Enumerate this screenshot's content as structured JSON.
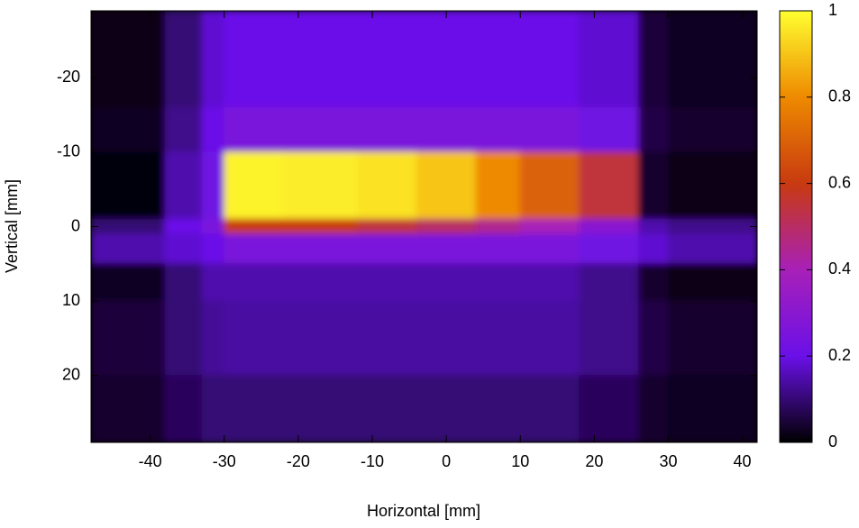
{
  "chart_data": {
    "type": "heatmap",
    "xlabel": "Horizontal [mm]",
    "ylabel": "Vertical [mm]",
    "xbins": [
      -48,
      -38,
      -33,
      -30,
      -22,
      -12,
      -4,
      4,
      10,
      18,
      26,
      30,
      42
    ],
    "ybins": [
      -29,
      -16,
      -10,
      -1,
      1,
      5,
      10,
      20,
      29
    ],
    "z": [
      [
        0.02,
        0.1,
        0.18,
        0.2,
        0.2,
        0.2,
        0.2,
        0.2,
        0.2,
        0.18,
        0.05,
        0.03
      ],
      [
        0.03,
        0.12,
        0.2,
        0.25,
        0.25,
        0.25,
        0.25,
        0.25,
        0.25,
        0.22,
        0.06,
        0.04
      ],
      [
        0.01,
        0.15,
        0.22,
        0.98,
        0.97,
        0.95,
        0.9,
        0.8,
        0.7,
        0.55,
        0.04,
        0.02
      ],
      [
        0.1,
        0.2,
        0.25,
        0.6,
        0.6,
        0.55,
        0.5,
        0.45,
        0.4,
        0.3,
        0.15,
        0.12
      ],
      [
        0.15,
        0.18,
        0.2,
        0.25,
        0.25,
        0.25,
        0.25,
        0.25,
        0.25,
        0.22,
        0.18,
        0.15
      ],
      [
        0.03,
        0.1,
        0.15,
        0.15,
        0.15,
        0.15,
        0.15,
        0.15,
        0.15,
        0.12,
        0.04,
        0.02
      ],
      [
        0.05,
        0.1,
        0.13,
        0.14,
        0.14,
        0.14,
        0.14,
        0.14,
        0.14,
        0.12,
        0.06,
        0.04
      ],
      [
        0.04,
        0.08,
        0.1,
        0.1,
        0.1,
        0.1,
        0.1,
        0.1,
        0.1,
        0.08,
        0.04,
        0.03
      ]
    ],
    "xlim": [
      -48,
      42
    ],
    "xticks": [
      -40,
      -30,
      -20,
      -10,
      0,
      10,
      20,
      30,
      40
    ],
    "ylim": [
      -29,
      29
    ],
    "yticks": [
      -20,
      -10,
      0,
      10,
      20
    ],
    "y_inverted": true,
    "clim": [
      0,
      1
    ],
    "cticks": [
      0,
      0.2,
      0.4,
      0.6,
      0.8,
      1
    ],
    "colormap": [
      "#000000",
      "#6a10e8",
      "#a820b8",
      "#c83a10",
      "#ee8a00",
      "#ffff30"
    ]
  }
}
